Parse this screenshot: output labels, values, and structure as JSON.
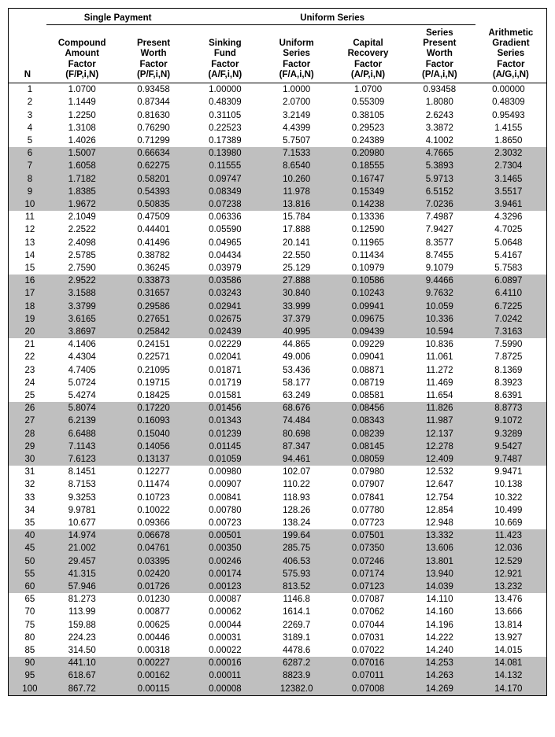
{
  "groupHeaders": {
    "single": "Single Payment",
    "uniform": "Uniform Series"
  },
  "columnHeaders": {
    "n": "N",
    "c1": [
      "Compound",
      "Amount",
      "Factor",
      "(F/P,i,N)"
    ],
    "c2": [
      "Present",
      "Worth",
      "Factor",
      "(P/F,i,N)"
    ],
    "c3": [
      "Sinking",
      "Fund",
      "Factor",
      "(A/F,i,N)"
    ],
    "c4": [
      "Uniform",
      "Series",
      "Factor",
      "(F/A,i,N)"
    ],
    "c5": [
      "Capital",
      "Recovery",
      "Factor",
      "(A/P,i,N)"
    ],
    "c6": [
      "Series",
      "Present",
      "Worth",
      "Factor",
      "(P/A,i,N)"
    ],
    "c7": [
      "Arithmetic",
      "Gradient",
      "Series",
      "Factor",
      "(A/G,i,N)"
    ]
  },
  "banding": {
    "start": 6,
    "size": 5
  },
  "colors": {
    "band": "#bfbfbf",
    "border": "#000000",
    "bg": "#ffffff"
  },
  "rows": [
    {
      "n": "1",
      "v": [
        "1.0700",
        "0.93458",
        "1.00000",
        "1.0000",
        "1.0700",
        "0.93458",
        "0.00000"
      ]
    },
    {
      "n": "2",
      "v": [
        "1.1449",
        "0.87344",
        "0.48309",
        "2.0700",
        "0.55309",
        "1.8080",
        "0.48309"
      ]
    },
    {
      "n": "3",
      "v": [
        "1.2250",
        "0.81630",
        "0.31105",
        "3.2149",
        "0.38105",
        "2.6243",
        "0.95493"
      ]
    },
    {
      "n": "4",
      "v": [
        "1.3108",
        "0.76290",
        "0.22523",
        "4.4399",
        "0.29523",
        "3.3872",
        "1.4155"
      ]
    },
    {
      "n": "5",
      "v": [
        "1.4026",
        "0.71299",
        "0.17389",
        "5.7507",
        "0.24389",
        "4.1002",
        "1.8650"
      ]
    },
    {
      "n": "6",
      "v": [
        "1.5007",
        "0.66634",
        "0.13980",
        "7.1533",
        "0.20980",
        "4.7665",
        "2.3032"
      ]
    },
    {
      "n": "7",
      "v": [
        "1.6058",
        "0.62275",
        "0.11555",
        "8.6540",
        "0.18555",
        "5.3893",
        "2.7304"
      ]
    },
    {
      "n": "8",
      "v": [
        "1.7182",
        "0.58201",
        "0.09747",
        "10.260",
        "0.16747",
        "5.9713",
        "3.1465"
      ]
    },
    {
      "n": "9",
      "v": [
        "1.8385",
        "0.54393",
        "0.08349",
        "11.978",
        "0.15349",
        "6.5152",
        "3.5517"
      ]
    },
    {
      "n": "10",
      "v": [
        "1.9672",
        "0.50835",
        "0.07238",
        "13.816",
        "0.14238",
        "7.0236",
        "3.9461"
      ]
    },
    {
      "n": "11",
      "v": [
        "2.1049",
        "0.47509",
        "0.06336",
        "15.784",
        "0.13336",
        "7.4987",
        "4.3296"
      ]
    },
    {
      "n": "12",
      "v": [
        "2.2522",
        "0.44401",
        "0.05590",
        "17.888",
        "0.12590",
        "7.9427",
        "4.7025"
      ]
    },
    {
      "n": "13",
      "v": [
        "2.4098",
        "0.41496",
        "0.04965",
        "20.141",
        "0.11965",
        "8.3577",
        "5.0648"
      ]
    },
    {
      "n": "14",
      "v": [
        "2.5785",
        "0.38782",
        "0.04434",
        "22.550",
        "0.11434",
        "8.7455",
        "5.4167"
      ]
    },
    {
      "n": "15",
      "v": [
        "2.7590",
        "0.36245",
        "0.03979",
        "25.129",
        "0.10979",
        "9.1079",
        "5.7583"
      ]
    },
    {
      "n": "16",
      "v": [
        "2.9522",
        "0.33873",
        "0.03586",
        "27.888",
        "0.10586",
        "9.4466",
        "6.0897"
      ]
    },
    {
      "n": "17",
      "v": [
        "3.1588",
        "0.31657",
        "0.03243",
        "30.840",
        "0.10243",
        "9.7632",
        "6.4110"
      ]
    },
    {
      "n": "18",
      "v": [
        "3.3799",
        "0.29586",
        "0.02941",
        "33.999",
        "0.09941",
        "10.059",
        "6.7225"
      ]
    },
    {
      "n": "19",
      "v": [
        "3.6165",
        "0.27651",
        "0.02675",
        "37.379",
        "0.09675",
        "10.336",
        "7.0242"
      ]
    },
    {
      "n": "20",
      "v": [
        "3.8697",
        "0.25842",
        "0.02439",
        "40.995",
        "0.09439",
        "10.594",
        "7.3163"
      ]
    },
    {
      "n": "21",
      "v": [
        "4.1406",
        "0.24151",
        "0.02229",
        "44.865",
        "0.09229",
        "10.836",
        "7.5990"
      ]
    },
    {
      "n": "22",
      "v": [
        "4.4304",
        "0.22571",
        "0.02041",
        "49.006",
        "0.09041",
        "11.061",
        "7.8725"
      ]
    },
    {
      "n": "23",
      "v": [
        "4.7405",
        "0.21095",
        "0.01871",
        "53.436",
        "0.08871",
        "11.272",
        "8.1369"
      ]
    },
    {
      "n": "24",
      "v": [
        "5.0724",
        "0.19715",
        "0.01719",
        "58.177",
        "0.08719",
        "11.469",
        "8.3923"
      ]
    },
    {
      "n": "25",
      "v": [
        "5.4274",
        "0.18425",
        "0.01581",
        "63.249",
        "0.08581",
        "11.654",
        "8.6391"
      ]
    },
    {
      "n": "26",
      "v": [
        "5.8074",
        "0.17220",
        "0.01456",
        "68.676",
        "0.08456",
        "11.826",
        "8.8773"
      ]
    },
    {
      "n": "27",
      "v": [
        "6.2139",
        "0.16093",
        "0.01343",
        "74.484",
        "0.08343",
        "11.987",
        "9.1072"
      ]
    },
    {
      "n": "28",
      "v": [
        "6.6488",
        "0.15040",
        "0.01239",
        "80.698",
        "0.08239",
        "12.137",
        "9.3289"
      ]
    },
    {
      "n": "29",
      "v": [
        "7.1143",
        "0.14056",
        "0.01145",
        "87.347",
        "0.08145",
        "12.278",
        "9.5427"
      ]
    },
    {
      "n": "30",
      "v": [
        "7.6123",
        "0.13137",
        "0.01059",
        "94.461",
        "0.08059",
        "12.409",
        "9.7487"
      ]
    },
    {
      "n": "31",
      "v": [
        "8.1451",
        "0.12277",
        "0.00980",
        "102.07",
        "0.07980",
        "12.532",
        "9.9471"
      ]
    },
    {
      "n": "32",
      "v": [
        "8.7153",
        "0.11474",
        "0.00907",
        "110.22",
        "0.07907",
        "12.647",
        "10.138"
      ]
    },
    {
      "n": "33",
      "v": [
        "9.3253",
        "0.10723",
        "0.00841",
        "118.93",
        "0.07841",
        "12.754",
        "10.322"
      ]
    },
    {
      "n": "34",
      "v": [
        "9.9781",
        "0.10022",
        "0.00780",
        "128.26",
        "0.07780",
        "12.854",
        "10.499"
      ]
    },
    {
      "n": "35",
      "v": [
        "10.677",
        "0.09366",
        "0.00723",
        "138.24",
        "0.07723",
        "12.948",
        "10.669"
      ]
    },
    {
      "n": "40",
      "v": [
        "14.974",
        "0.06678",
        "0.00501",
        "199.64",
        "0.07501",
        "13.332",
        "11.423"
      ]
    },
    {
      "n": "45",
      "v": [
        "21.002",
        "0.04761",
        "0.00350",
        "285.75",
        "0.07350",
        "13.606",
        "12.036"
      ]
    },
    {
      "n": "50",
      "v": [
        "29.457",
        "0.03395",
        "0.00246",
        "406.53",
        "0.07246",
        "13.801",
        "12.529"
      ]
    },
    {
      "n": "55",
      "v": [
        "41.315",
        "0.02420",
        "0.00174",
        "575.93",
        "0.07174",
        "13.940",
        "12.921"
      ]
    },
    {
      "n": "60",
      "v": [
        "57.946",
        "0.01726",
        "0.00123",
        "813.52",
        "0.07123",
        "14.039",
        "13.232"
      ]
    },
    {
      "n": "65",
      "v": [
        "81.273",
        "0.01230",
        "0.00087",
        "1146.8",
        "0.07087",
        "14.110",
        "13.476"
      ]
    },
    {
      "n": "70",
      "v": [
        "113.99",
        "0.00877",
        "0.00062",
        "1614.1",
        "0.07062",
        "14.160",
        "13.666"
      ]
    },
    {
      "n": "75",
      "v": [
        "159.88",
        "0.00625",
        "0.00044",
        "2269.7",
        "0.07044",
        "14.196",
        "13.814"
      ]
    },
    {
      "n": "80",
      "v": [
        "224.23",
        "0.00446",
        "0.00031",
        "3189.1",
        "0.07031",
        "14.222",
        "13.927"
      ]
    },
    {
      "n": "85",
      "v": [
        "314.50",
        "0.00318",
        "0.00022",
        "4478.6",
        "0.07022",
        "14.240",
        "14.015"
      ]
    },
    {
      "n": "90",
      "v": [
        "441.10",
        "0.00227",
        "0.00016",
        "6287.2",
        "0.07016",
        "14.253",
        "14.081"
      ]
    },
    {
      "n": "95",
      "v": [
        "618.67",
        "0.00162",
        "0.00011",
        "8823.9",
        "0.07011",
        "14.263",
        "14.132"
      ]
    },
    {
      "n": "100",
      "v": [
        "867.72",
        "0.00115",
        "0.00008",
        "12382.0",
        "0.07008",
        "14.269",
        "14.170"
      ]
    }
  ]
}
